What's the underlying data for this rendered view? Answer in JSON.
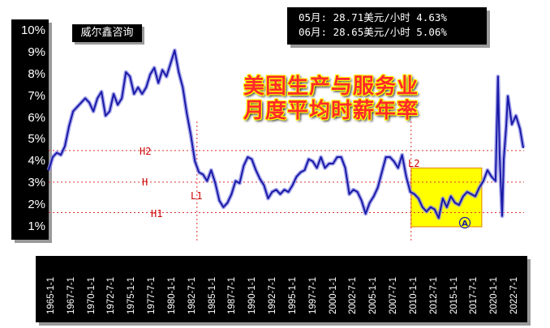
{
  "brand": "威尔鑫咨询",
  "info": {
    "line1": "05月: 28.71美元/小时 4.63%",
    "line2": "06月: 28.65美元/小时 5.06%"
  },
  "title": {
    "line1": "美国生产与服务业",
    "line2": "月度平均时薪年率"
  },
  "annotations": {
    "h2": "H2",
    "h": "H",
    "h1": "H1",
    "l1": "L1",
    "l2": "L2",
    "marker": "A"
  },
  "colors": {
    "line": "#1a1aa8",
    "line_glow": "#8c8ce6",
    "reference_lines": "#e03030",
    "highlight_box": "#ffff00",
    "highlight_border": "#e08000",
    "title_text": "#ff2a2a"
  },
  "chart_data": {
    "type": "line",
    "title": "美国生产与服务业 月度平均时薪年率",
    "y_tick_labels": [
      "10%",
      "9%",
      "8%",
      "7%",
      "6%",
      "5%",
      "4%",
      "3%",
      "2%",
      "1%"
    ],
    "x_tick_labels": [
      "1965-1-1",
      "1967-7-1",
      "1970-1-1",
      "1972-7-1",
      "1975-1-1",
      "1977-7-1",
      "1980-1-1",
      "1982-7-1",
      "1985-1-1",
      "1987-7-1",
      "1990-1-1",
      "1992-7-1",
      "1995-1-1",
      "1997-7-1",
      "2000-1-1",
      "2002-7-1",
      "2005-1-1",
      "2007-7-1",
      "2010-1-1",
      "2012-7-1",
      "2015-1-1",
      "2017-7-1",
      "2020-1-1",
      "2022-7-1"
    ],
    "ylim": [
      1,
      10
    ],
    "xlim": [
      1965.0,
      2023.5
    ],
    "reference_lines": [
      {
        "name": "H2",
        "y": 4.5
      },
      {
        "name": "H",
        "y": 3.05
      },
      {
        "name": "H1",
        "y": 1.65
      }
    ],
    "vertical_markers": [
      {
        "name": "L1",
        "x": 1983.25
      },
      {
        "name": "L2",
        "x": 2009.6
      }
    ],
    "highlight_region": {
      "x": [
        2009.6,
        2018.3
      ],
      "y": [
        1.0,
        3.7
      ],
      "label": "A"
    },
    "series": [
      {
        "x": [
          1965.0,
          1965.5,
          1966.0,
          1966.5,
          1967.0,
          1967.5,
          1968.0,
          1968.5,
          1969.0,
          1969.5,
          1970.0,
          1970.5,
          1971.0,
          1971.5,
          1972.0,
          1972.5,
          1973.0,
          1973.5,
          1974.0,
          1974.5,
          1975.0,
          1975.5,
          1976.0,
          1976.5,
          1977.0,
          1977.5,
          1978.0,
          1978.5,
          1979.0,
          1979.5,
          1980.0,
          1980.5,
          1981.0,
          1981.5,
          1982.0,
          1982.5,
          1983.0,
          1983.5,
          1984.0,
          1984.5,
          1985.0,
          1985.5,
          1986.0,
          1986.5,
          1987.0,
          1987.5,
          1988.0,
          1988.5,
          1989.0,
          1989.5,
          1990.0,
          1990.5,
          1991.0,
          1991.5,
          1992.0,
          1992.5,
          1993.0,
          1993.5,
          1994.0,
          1994.5,
          1995.0,
          1995.5,
          1996.0,
          1996.5,
          1997.0,
          1997.5,
          1998.0,
          1998.5,
          1999.0,
          1999.5,
          2000.0,
          2000.5,
          2001.0,
          2001.5,
          2002.0,
          2002.5,
          2003.0,
          2003.5,
          2004.0,
          2004.5,
          2005.0,
          2005.5,
          2006.0,
          2006.5,
          2007.0,
          2007.5,
          2008.0,
          2008.5,
          2009.0,
          2009.5,
          2010.0,
          2010.5,
          2011.0,
          2011.5,
          2012.0,
          2012.5,
          2013.0,
          2013.5,
          2014.0,
          2014.5,
          2015.0,
          2015.5,
          2016.0,
          2016.5,
          2017.0,
          2017.5,
          2018.0,
          2018.5,
          2019.0,
          2019.5,
          2020.0,
          2020.3,
          2020.5,
          2020.8,
          2021.0,
          2021.3,
          2021.5,
          2022.0,
          2022.5,
          2023.0,
          2023.4
        ],
        "y": [
          3.6,
          4.2,
          4.4,
          4.3,
          4.7,
          5.6,
          6.3,
          6.5,
          6.7,
          6.9,
          6.7,
          6.3,
          6.9,
          7.2,
          6.1,
          6.3,
          7.1,
          6.6,
          6.9,
          8.1,
          7.9,
          7.1,
          7.4,
          7.1,
          7.4,
          8.0,
          8.3,
          7.6,
          8.2,
          7.9,
          8.5,
          9.1,
          8.1,
          7.4,
          6.2,
          5.2,
          4.0,
          3.5,
          3.4,
          3.1,
          3.6,
          3.0,
          2.2,
          1.9,
          2.1,
          2.5,
          3.1,
          3.0,
          3.8,
          4.2,
          4.1,
          3.6,
          3.2,
          2.9,
          2.3,
          2.6,
          2.7,
          2.5,
          2.7,
          2.6,
          2.9,
          3.3,
          3.5,
          3.6,
          4.1,
          4.0,
          3.7,
          4.2,
          3.7,
          3.9,
          3.9,
          4.2,
          4.2,
          3.7,
          2.5,
          2.7,
          2.6,
          2.2,
          1.6,
          2.1,
          2.4,
          2.8,
          3.5,
          4.2,
          4.2,
          4.0,
          3.7,
          4.3,
          3.3,
          2.6,
          2.5,
          2.3,
          1.9,
          1.7,
          1.9,
          1.8,
          1.4,
          2.3,
          1.9,
          2.4,
          2.1,
          2.0,
          2.4,
          2.6,
          2.5,
          2.4,
          2.8,
          3.1,
          3.6,
          3.3,
          3.1,
          7.9,
          4.3,
          1.5,
          4.1,
          5.6,
          7.0,
          5.7,
          6.1,
          5.5,
          4.63
        ]
      }
    ]
  }
}
